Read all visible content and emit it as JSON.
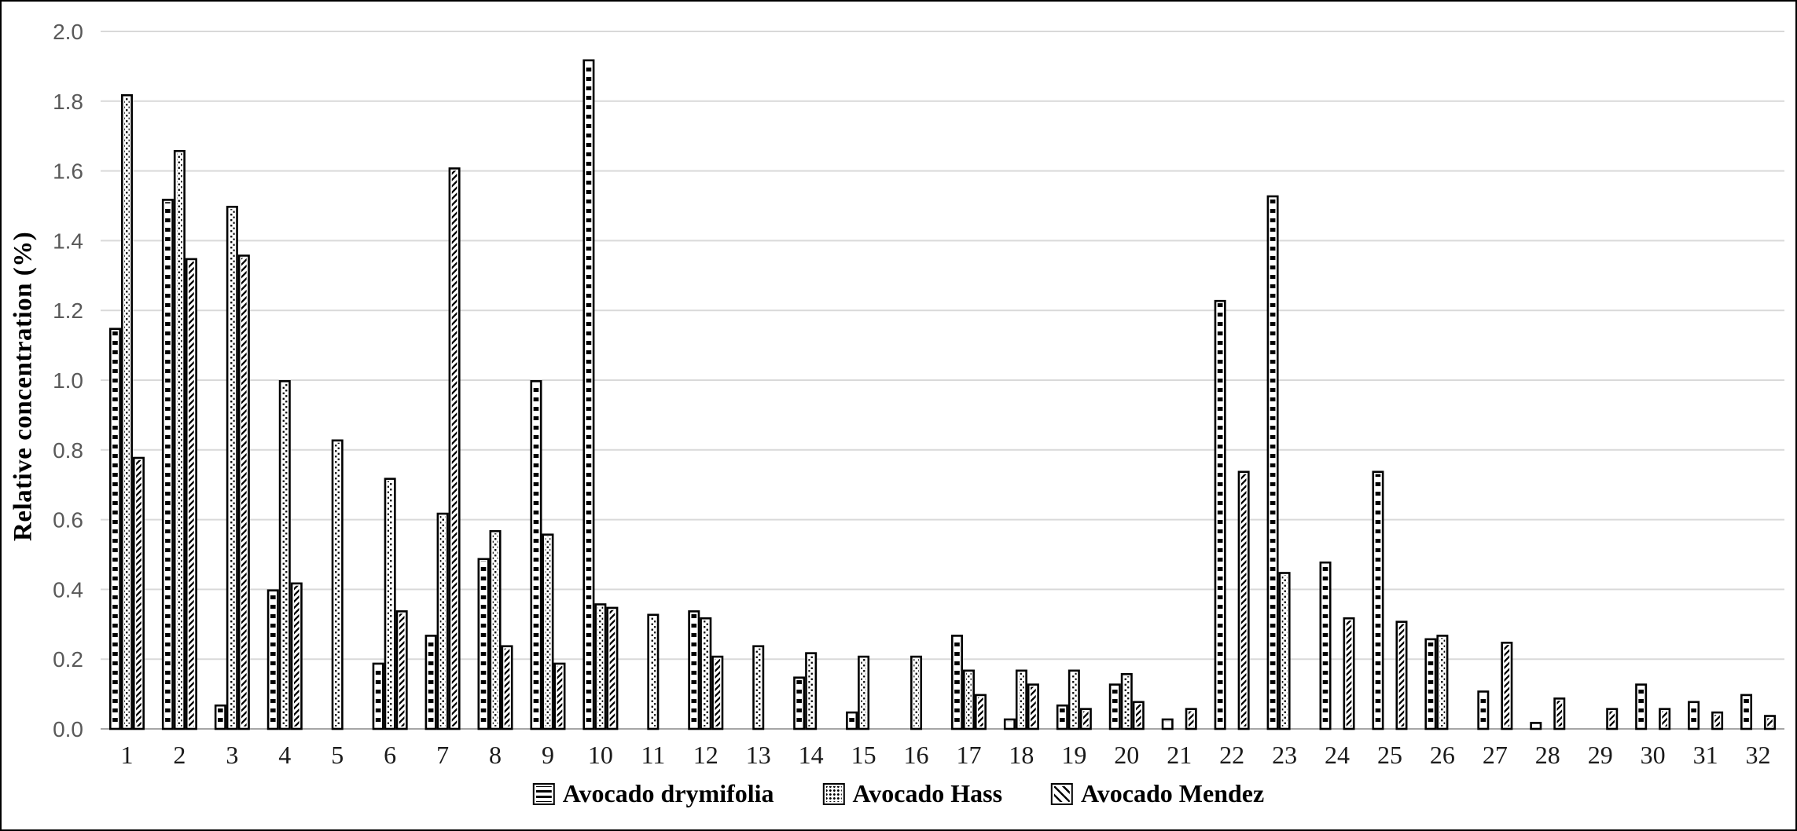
{
  "chart_data": {
    "type": "bar",
    "title": "",
    "xlabel": "",
    "ylabel": "Relative concentration (%)",
    "ylim": [
      0.0,
      2.0
    ],
    "ytick_step": 0.2,
    "ytick_labels": [
      "0.0",
      "0.2",
      "0.4",
      "0.6",
      "0.8",
      "1.0",
      "1.2",
      "1.4",
      "1.6",
      "1.8",
      "2.0"
    ],
    "grid": true,
    "legend_position": "bottom",
    "categories": [
      "1",
      "2",
      "3",
      "4",
      "5",
      "6",
      "7",
      "8",
      "9",
      "10",
      "11",
      "12",
      "13",
      "14",
      "15",
      "16",
      "17",
      "18",
      "19",
      "20",
      "21",
      "22",
      "23",
      "24",
      "25",
      "26",
      "27",
      "28",
      "29",
      "30",
      "31",
      "32"
    ],
    "series": [
      {
        "name": "Avocado drymifolia",
        "pattern": "brick",
        "values": [
          1.15,
          1.52,
          0.07,
          0.4,
          0,
          0.19,
          0.27,
          0.49,
          1.0,
          1.92,
          0,
          0.34,
          0,
          0.15,
          0.05,
          0,
          0.27,
          0.03,
          0.07,
          0.13,
          0.03,
          1.23,
          1.53,
          0.48,
          0.74,
          0.26,
          0.11,
          0.02,
          0,
          0.13,
          0.08,
          0.1
        ]
      },
      {
        "name": "Avocado Hass",
        "pattern": "dots",
        "values": [
          1.82,
          1.66,
          1.5,
          1.0,
          0.83,
          0.72,
          0.62,
          0.57,
          0.56,
          0.36,
          0.33,
          0.32,
          0.24,
          0.22,
          0.21,
          0.21,
          0.17,
          0.17,
          0.17,
          0.16,
          0,
          0,
          0.45,
          0,
          0,
          0.27,
          0,
          0,
          0,
          0,
          0,
          0
        ]
      },
      {
        "name": "Avocado Mendez",
        "pattern": "diagonal",
        "values": [
          0.78,
          1.35,
          1.36,
          0.42,
          0,
          0.34,
          1.61,
          0.24,
          0.19,
          0.35,
          0,
          0.21,
          0,
          0,
          0,
          0,
          0.1,
          0.13,
          0.06,
          0.08,
          0.06,
          0.74,
          0,
          0.32,
          0.31,
          0,
          0.25,
          0.09,
          0.06,
          0.06,
          0.05,
          0.04
        ]
      }
    ],
    "colors": {
      "bar_fill": "#ffffff",
      "bar_stroke": "#000000",
      "gridline": "#d9d9d9",
      "axis_line": "#a6a6a6",
      "tick_label": "#595959",
      "text": "#000000"
    }
  }
}
